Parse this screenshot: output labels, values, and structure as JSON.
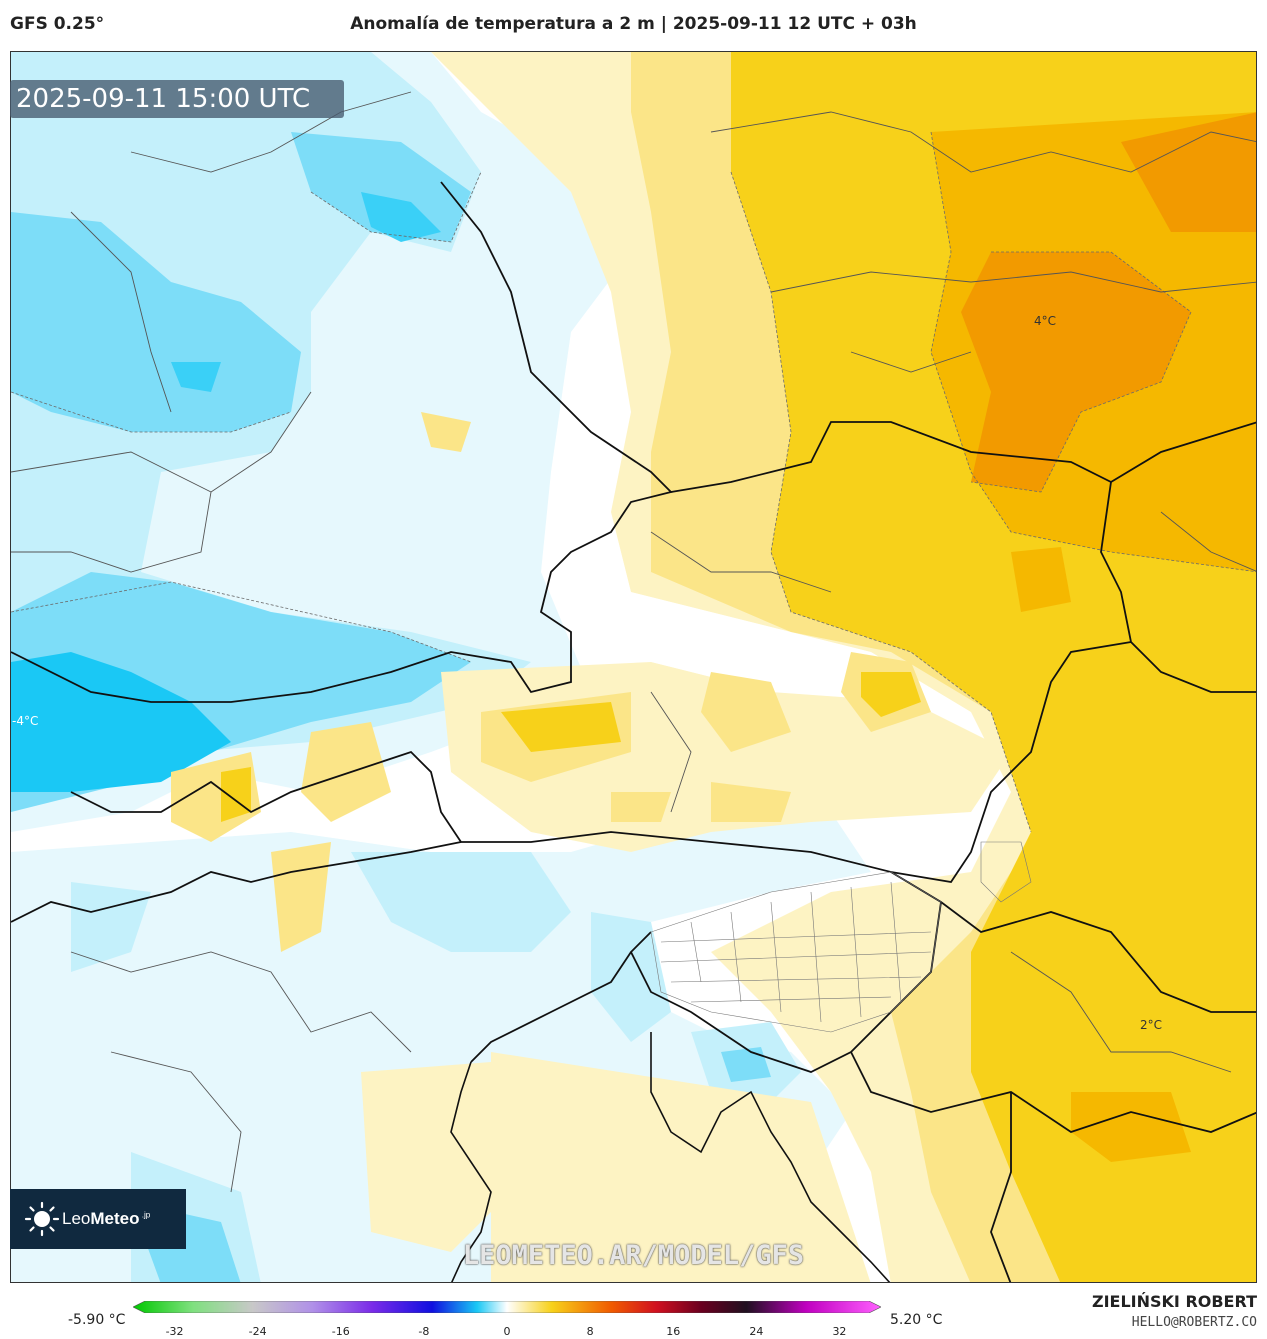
{
  "header": {
    "model": "GFS 0.25°",
    "title": "Anomalía de temperatura a 2 m | 2025-09-11 12 UTC + 03h"
  },
  "map": {
    "valid_time": "2025-09-11 15:00 UTC",
    "contour_labels": [
      "4°C",
      "-4°C",
      "2°C"
    ],
    "watermark": "LEOMETEO.AR/MODEL/GFS",
    "logo": {
      "brand_a": "Leo",
      "brand_b": "Meteo",
      "suffix": " .jp"
    },
    "colors": {
      "cold_strong": "#1ac8f5",
      "cold_mid": "#7dddf8",
      "cold_light": "#c4f0fb",
      "cold_faint": "#e6f8fd",
      "warm_faint": "#fdf3c3",
      "warm_light": "#fbe588",
      "warm_mid": "#f7d11a",
      "warm_strong": "#f5b800",
      "warm_peak": "#f29a00"
    }
  },
  "legend": {
    "min_label": "-5.90 °C",
    "max_label": "5.20 °C",
    "ticks": [
      "-32",
      "-24",
      "-16",
      "-8",
      "0",
      "8",
      "16",
      "24",
      "32"
    ],
    "tick_values": [
      -32,
      -24,
      -16,
      -8,
      0,
      8,
      16,
      24,
      32
    ],
    "range": [
      -36,
      36
    ]
  },
  "credits": {
    "author": "ZIELIŃSKI ROBERT",
    "email": "HELLO@ROBERTZ.CO"
  }
}
